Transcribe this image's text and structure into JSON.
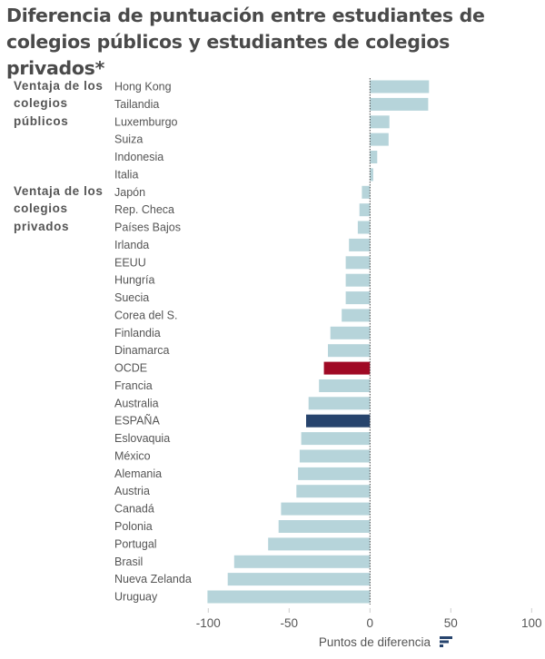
{
  "chart_data": {
    "type": "bar",
    "orientation": "horizontal",
    "title": "Diferencia de puntuación entre estudiantes de colegios públicos y estudiantes de colegios privados*",
    "title_lines": [
      "Diferencia de puntuación entre estudiantes de",
      "colegios públicos y estudiantes de colegios privados*"
    ],
    "xlabel": "Puntos de diferencia",
    "ylabel": "",
    "xlim": [
      -110,
      100
    ],
    "xticks": [
      -100,
      -50,
      0,
      50,
      100
    ],
    "xtick_labels": [
      "-100",
      "-50",
      "0",
      "50",
      "100"
    ],
    "grid": false,
    "group_labels": [
      {
        "lines": [
          "Ventaja de los",
          "colegios",
          "públicos"
        ],
        "starts_at": "Hong Kong"
      },
      {
        "lines": [
          "Ventaja de los",
          "colegios",
          "privados"
        ],
        "starts_at": "Japón"
      }
    ],
    "categories": [
      "Hong Kong",
      "Tailandia",
      "Luxemburgo",
      "Suiza",
      "Indonesia",
      "Italia",
      "Japón",
      "Rep. Checa",
      "Países Bajos",
      "Irlanda",
      "EEUU",
      "Hungría",
      "Suecia",
      "Corea del S.",
      "Finlandia",
      "Dinamarca",
      "OCDE",
      "Francia",
      "Australia",
      "ESPAÑA",
      "Eslovaquia",
      "México",
      "Alemania",
      "Austria",
      "Canadá",
      "Polonia",
      "Portugal",
      "Brasil",
      "Nueva Zelanda",
      "Uruguay"
    ],
    "values": [
      36.5,
      36,
      12,
      11.5,
      4.5,
      2,
      -5,
      -6.5,
      -7.5,
      -13,
      -15,
      -15,
      -15,
      -17.5,
      -24.5,
      -26,
      -28.5,
      -31.5,
      -38,
      -39.5,
      -42.5,
      -43.5,
      -44.5,
      -45.5,
      -55,
      -56.5,
      -63,
      -84,
      -88,
      -100.5
    ],
    "highlight": {
      "OCDE": "#a00a25",
      "ESPAÑA": "#27446d"
    },
    "colors": {
      "default_bar": "#b6d4da",
      "oecd": "#a00a25",
      "spain": "#27446d",
      "text": "#555555",
      "title": "#4a4a4a",
      "zero_line": "#444444",
      "tick": "#cccccc"
    },
    "legend_icon": "bar-chart-icon"
  }
}
